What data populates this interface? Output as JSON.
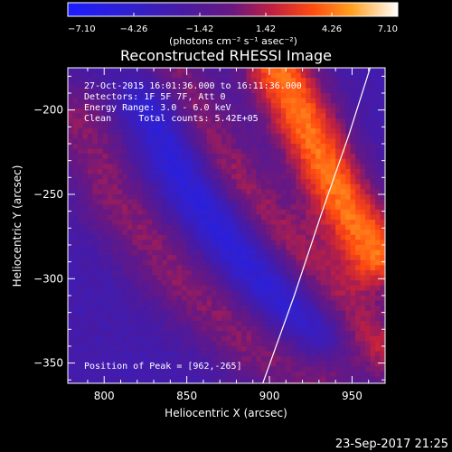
{
  "chart_data": {
    "type": "heatmap",
    "title": "Reconstructed RHESSI Image",
    "xlabel": "Heliocentric X (arcsec)",
    "ylabel": "Heliocentric Y (arcsec)",
    "xlim": [
      778,
      970
    ],
    "ylim": [
      -362,
      -175
    ],
    "x_ticks": [
      {
        "value": 800,
        "label": "800"
      },
      {
        "value": 850,
        "label": "850"
      },
      {
        "value": 900,
        "label": "900"
      },
      {
        "value": 950,
        "label": "950"
      }
    ],
    "y_ticks": [
      {
        "value": -200,
        "label": "−200"
      },
      {
        "value": -250,
        "label": "−250"
      },
      {
        "value": -300,
        "label": "−300"
      },
      {
        "value": -350,
        "label": "−350"
      }
    ],
    "colorbar": {
      "min": -7.1,
      "max": 7.1,
      "ticks": [
        {
          "value": -7.1,
          "label": "−7.10"
        },
        {
          "value": -4.26,
          "label": "−4.26"
        },
        {
          "value": -1.42,
          "label": "−1.42"
        },
        {
          "value": 1.42,
          "label": "1.42"
        },
        {
          "value": 4.26,
          "label": "4.26"
        },
        {
          "value": 7.1,
          "label": "7.10"
        }
      ],
      "units_label": "(photons cm⁻² s⁻¹ asec⁻²)"
    },
    "info_lines": [
      "27-Oct-2015 16:01:36.000 to 16:11:36.000",
      "Detectors: 1F 5F 7F, Att 0",
      "Energy Range: 3.0 - 6.0 keV",
      "Clean     Total counts: 5.42E+05"
    ],
    "peak_label": "Position of Peak = [962,-265]",
    "peak": [
      962,
      -265
    ],
    "limb_points": [
      [
        896,
        -362
      ],
      [
        915,
        -310
      ],
      [
        932,
        -260
      ],
      [
        948,
        -215
      ],
      [
        961,
        -175
      ]
    ],
    "stripes": [
      {
        "name": "stripe-1",
        "points": [
          [
            785,
            -205
          ],
          [
            805,
            -250
          ],
          [
            845,
            -300
          ],
          [
            890,
            -340
          ],
          [
            930,
            -360
          ]
        ],
        "amplitude": 3.2,
        "width": 16
      },
      {
        "name": "stripe-2",
        "points": [
          [
            840,
            -180
          ],
          [
            870,
            -230
          ],
          [
            905,
            -275
          ],
          [
            945,
            -320
          ],
          [
            975,
            -345
          ]
        ],
        "amplitude": 4.2,
        "width": 14
      },
      {
        "name": "stripe-3",
        "points": [
          [
            905,
            -175
          ],
          [
            925,
            -215
          ],
          [
            945,
            -255
          ],
          [
            965,
            -285
          ]
        ],
        "amplitude": 6.8,
        "width": 15
      },
      {
        "name": "dark-trough",
        "points": [
          [
            830,
            -195
          ],
          [
            855,
            -245
          ],
          [
            890,
            -290
          ],
          [
            930,
            -330
          ]
        ],
        "amplitude": -3.5,
        "width": 14
      }
    ],
    "background_level": -2.6,
    "date_stamp": "23-Sep-2017 21:25"
  }
}
